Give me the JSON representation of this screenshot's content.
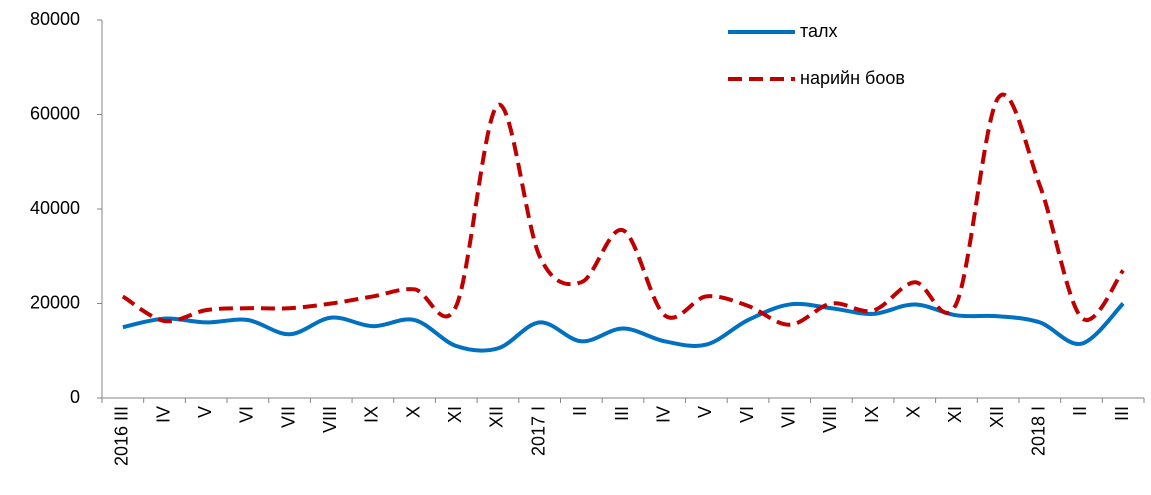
{
  "chart_data": {
    "type": "line",
    "categories": [
      "2016 III",
      "IV",
      "V",
      "VI",
      "VII",
      "VIII",
      "IX",
      "X",
      "XI",
      "XII",
      "2017 I",
      "II",
      "III",
      "IV",
      "V",
      "VI",
      "VII",
      "VIII",
      "IX",
      "X",
      "XI",
      "XII",
      "2018 I",
      "II",
      "III"
    ],
    "series": [
      {
        "name": "талх",
        "color": "#0070c0",
        "dash": "solid",
        "values": [
          15000,
          16800,
          16000,
          16500,
          13500,
          17000,
          15200,
          16500,
          11000,
          10500,
          16000,
          12000,
          14700,
          12000,
          11300,
          16500,
          19800,
          19000,
          17800,
          19800,
          17500,
          17300,
          16000,
          11500,
          20000
        ]
      },
      {
        "name": "нарийн боов",
        "color": "#c00000",
        "dash": "dashed",
        "values": [
          21500,
          16300,
          18600,
          19000,
          19000,
          20000,
          21500,
          23000,
          19500,
          62000,
          30000,
          24500,
          35500,
          17500,
          21500,
          19500,
          15500,
          20000,
          18500,
          24500,
          20000,
          63500,
          45000,
          17000,
          27000
        ]
      }
    ],
    "ylim": [
      0,
      80000
    ],
    "yticks": [
      0,
      20000,
      40000,
      60000,
      80000
    ],
    "grid": false,
    "legend": "top-right"
  }
}
